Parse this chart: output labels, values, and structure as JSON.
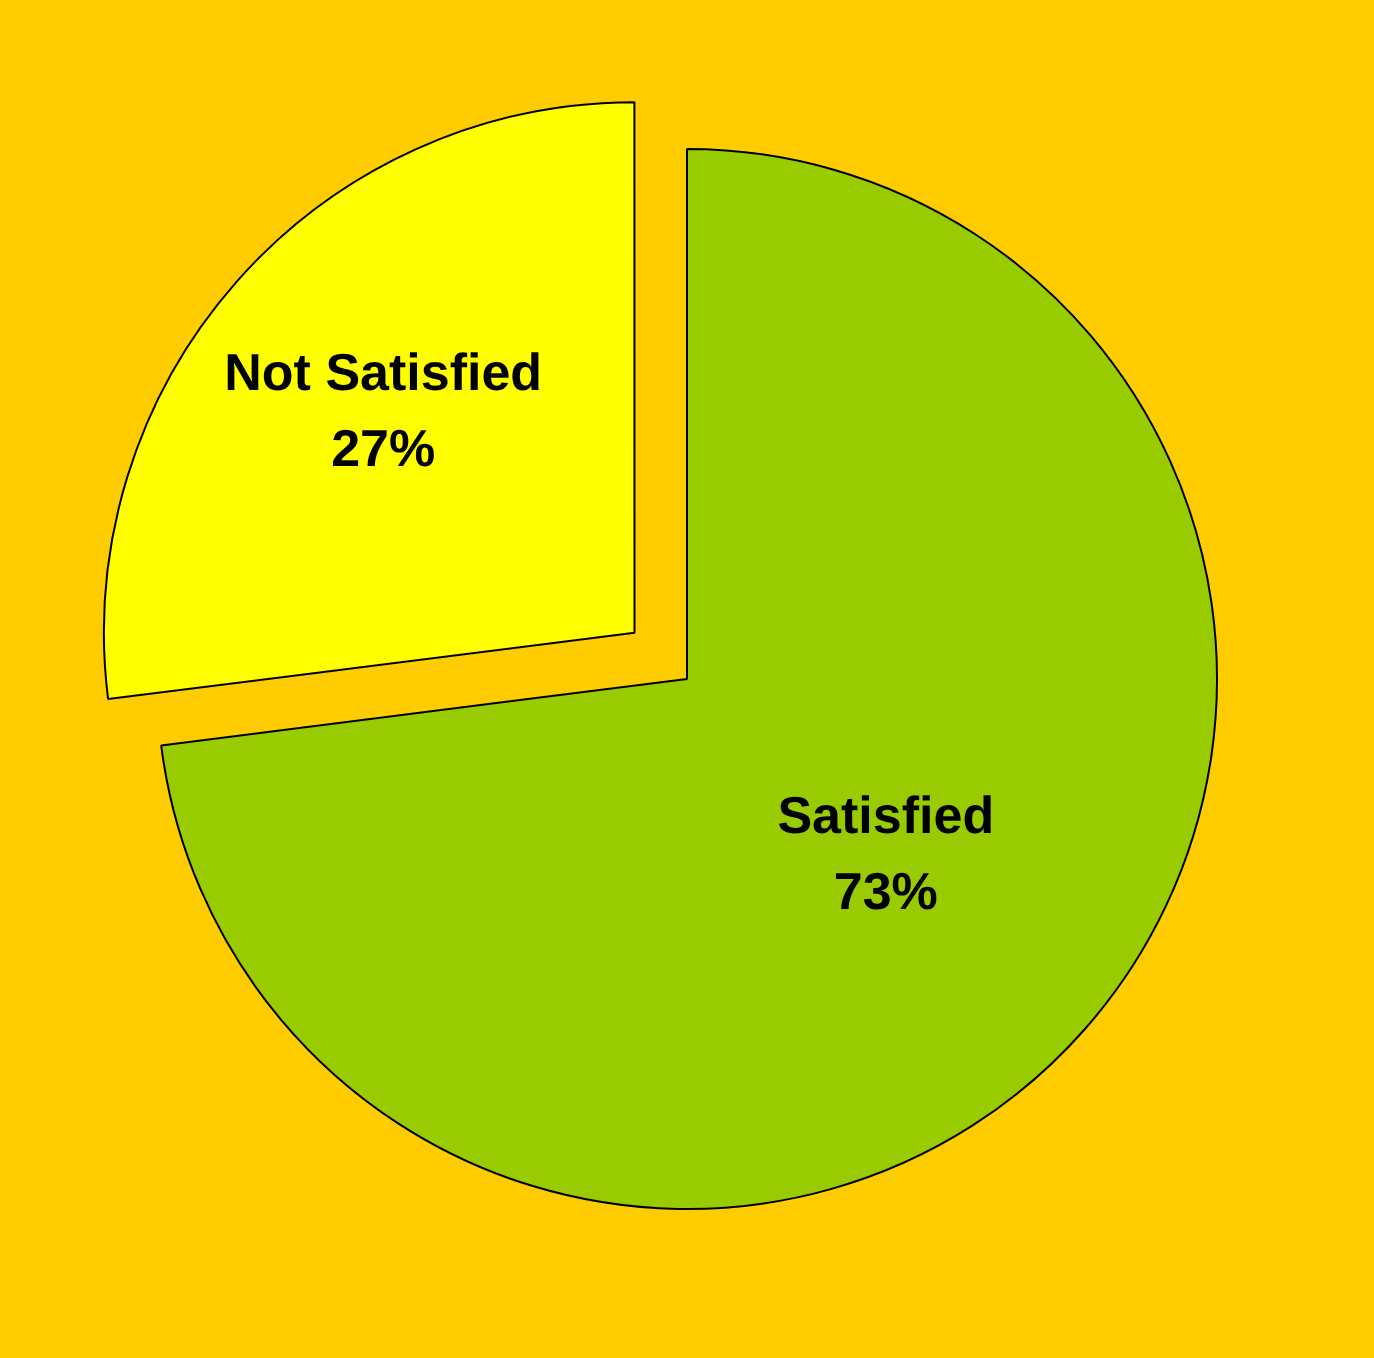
{
  "chart_data": {
    "type": "pie",
    "categories": [
      "Satisfied",
      "Not Satisfied"
    ],
    "values": [
      73,
      27
    ],
    "colors": [
      "#99cc00",
      "#ffff00"
    ],
    "value_labels": [
      "73%",
      "27%"
    ],
    "legend": false
  }
}
